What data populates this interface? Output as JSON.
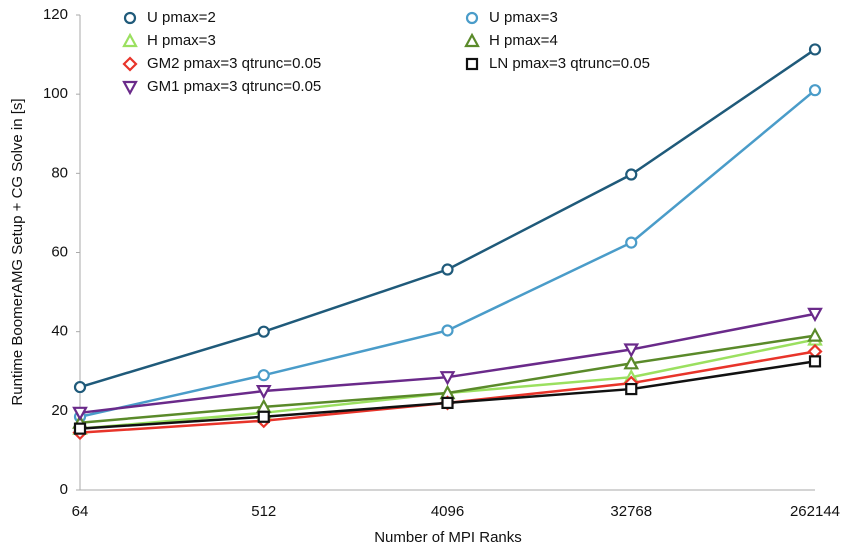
{
  "chart_data": {
    "type": "line",
    "x_label": "Number of MPI Ranks",
    "y_label": "Runtime BoomerAMG Setup + CG Solve in [s]",
    "categories": [
      "64",
      "512",
      "4096",
      "32768",
      "262144"
    ],
    "ylim": [
      0,
      120
    ],
    "yticks": [
      0,
      20,
      40,
      60,
      80,
      100,
      120
    ],
    "grid": false,
    "legend": "top-left",
    "series": [
      {
        "name": "U pmax=2",
        "color": "#1f5a7a",
        "marker": "circle",
        "values": [
          26,
          40,
          55.7,
          79.7,
          111.3
        ]
      },
      {
        "name": "U pmax=3",
        "color": "#4a9cc9",
        "marker": "circle",
        "values": [
          18.5,
          29,
          40.3,
          62.5,
          101
        ]
      },
      {
        "name": "H pmax=3",
        "color": "#9be060",
        "marker": "triangle-up",
        "values": [
          15.5,
          19.5,
          24.5,
          28.5,
          38
        ]
      },
      {
        "name": "H pmax=4",
        "color": "#5a8a2a",
        "marker": "triangle-up",
        "values": [
          17,
          21,
          24.5,
          32,
          39
        ]
      },
      {
        "name": "GM2 pmax=3 qtrunc=0.05",
        "color": "#e8342a",
        "marker": "diamond",
        "values": [
          14.5,
          17.5,
          22,
          27,
          35
        ]
      },
      {
        "name": "LN pmax=3 qtrunc=0.05",
        "color": "#111111",
        "marker": "square",
        "values": [
          15.5,
          18.5,
          22,
          25.5,
          32.5
        ]
      },
      {
        "name": "GM1 pmax=3 qtrunc=0.05",
        "color": "#6a2a8a",
        "marker": "triangle-down",
        "values": [
          19.5,
          25,
          28.5,
          35.5,
          44.5
        ]
      }
    ]
  }
}
